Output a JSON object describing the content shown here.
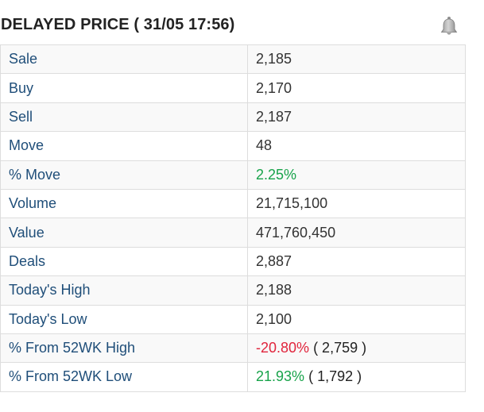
{
  "header": {
    "title": "DELAYED PRICE ( 31/05 17:56)",
    "bell_icon": "bell-icon"
  },
  "colors": {
    "positive": "#18a34a",
    "negative": "#e0243c",
    "label": "#1f4e79"
  },
  "rows": [
    {
      "label": "Sale",
      "value": "2,185"
    },
    {
      "label": "Buy",
      "value": "2,170"
    },
    {
      "label": "Sell",
      "value": "2,187"
    },
    {
      "label": "Move",
      "value": "48"
    },
    {
      "label": "% Move",
      "value": "2.25%"
    },
    {
      "label": "Volume",
      "value": "21,715,100"
    },
    {
      "label": "Value",
      "value": "471,760,450"
    },
    {
      "label": "Deals",
      "value": "2,887"
    },
    {
      "label": "Today's High",
      "value": "2,188"
    },
    {
      "label": "Today's Low",
      "value": "2,100"
    },
    {
      "label": "% From 52WK High",
      "value": "-20.80%",
      "extra": "( 2,759 )"
    },
    {
      "label": "% From 52WK Low",
      "value": "21.93%",
      "extra": "( 1,792 )"
    }
  ]
}
